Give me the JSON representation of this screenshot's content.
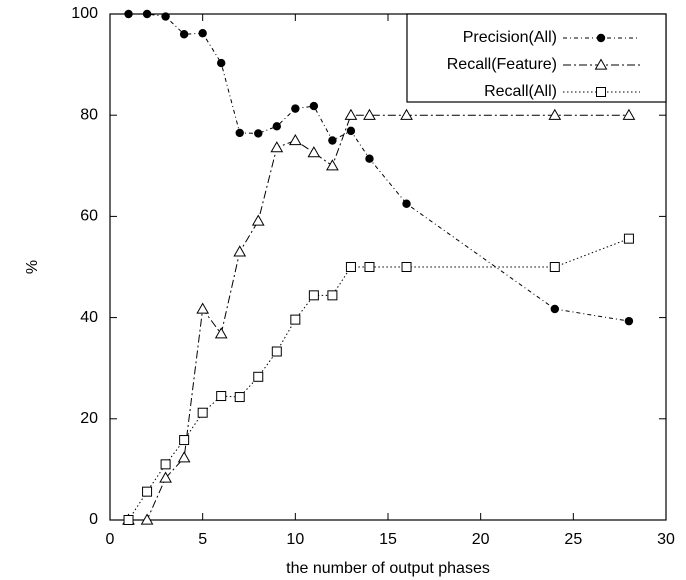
{
  "chart_data": {
    "type": "line",
    "xlabel": "the number of output phases",
    "ylabel": "%",
    "xlim": [
      0,
      30
    ],
    "ylim": [
      0,
      100
    ],
    "xticks": [
      0,
      5,
      10,
      15,
      20,
      25,
      30
    ],
    "yticks": [
      0,
      20,
      40,
      60,
      80,
      100
    ],
    "grid": false,
    "legend_position": "top-right",
    "series": [
      {
        "name": "Precision(All)",
        "marker": "filled-circle",
        "dash": "dashed-dotted",
        "color": "#000000",
        "x": [
          1,
          2,
          3,
          4,
          5,
          6,
          7,
          8,
          9,
          10,
          11,
          12,
          13,
          14,
          16,
          24,
          28
        ],
        "y": [
          100,
          100,
          99.5,
          96,
          96.2,
          90.3,
          76.5,
          76.4,
          77.8,
          81.3,
          81.8,
          75,
          76.9,
          71.4,
          62.5,
          41.7,
          39.3
        ]
      },
      {
        "name": "Recall(Feature)",
        "marker": "open-triangle",
        "dash": "dash-dot",
        "color": "#000000",
        "x": [
          1,
          2,
          3,
          4,
          5,
          6,
          7,
          8,
          9,
          10,
          11,
          12,
          13,
          14,
          16,
          24,
          28
        ],
        "y": [
          0,
          0,
          8.3,
          12.3,
          41.7,
          36.8,
          53,
          59.1,
          73.6,
          75,
          72.6,
          70,
          80,
          80,
          80,
          80,
          80
        ]
      },
      {
        "name": "Recall(All)",
        "marker": "open-square",
        "dash": "dotted",
        "color": "#000000",
        "x": [
          1,
          2,
          3,
          4,
          5,
          6,
          7,
          8,
          9,
          10,
          11,
          12,
          13,
          14,
          16,
          24,
          28
        ],
        "y": [
          0,
          5.6,
          11,
          15.8,
          21.2,
          24.5,
          24.3,
          28.3,
          33.3,
          39.6,
          44.4,
          44.4,
          50,
          50,
          50,
          50,
          55.6
        ]
      }
    ]
  }
}
